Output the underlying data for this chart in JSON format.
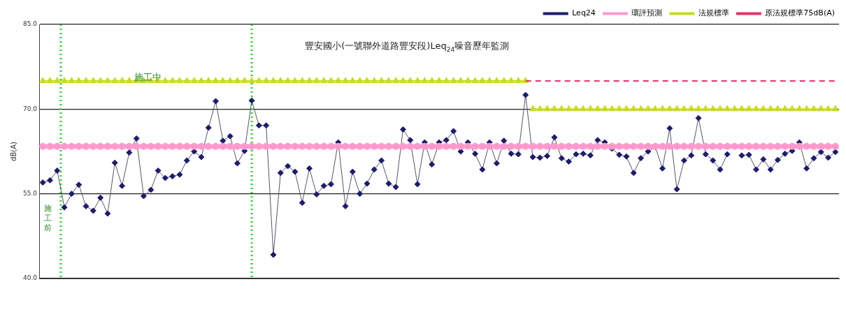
{
  "chart_data": {
    "type": "line",
    "title": "豐安國小(一號聯外道路豐安段)Leq$_{24}$噪音歷年監測",
    "ylabel": "dB(A)",
    "categories": [
      null,
      null,
      null,
      null,
      null,
      null,
      null,
      null,
      null,
      null,
      null,
      null,
      null,
      null,
      null,
      null,
      null,
      null,
      null,
      null,
      null,
      null,
      null,
      null,
      null,
      null,
      null,
      null,
      null,
      null,
      null,
      null,
      null,
      null,
      null,
      null,
      null,
      null,
      null,
      null,
      null,
      null,
      null,
      null,
      null,
      null,
      null,
      null,
      null,
      null,
      null,
      null,
      null,
      null,
      null,
      null,
      null,
      null,
      null,
      null,
      null,
      null,
      null,
      null,
      null,
      null,
      null,
      null,
      null,
      null,
      null,
      null,
      null,
      null,
      null,
      null,
      null,
      null,
      null,
      null,
      null,
      null,
      null,
      null,
      null,
      null,
      null,
      null,
      null,
      null,
      null,
      null,
      null,
      null,
      null,
      null,
      null,
      null,
      null,
      null,
      null,
      null,
      null,
      null,
      null,
      null,
      null,
      null,
      null,
      null,
      null
    ],
    "series": [
      {
        "name": "Leq24",
        "color": "#1c1c6e",
        "marker": "diamond",
        "line_style": "solid",
        "values": [
          57.0,
          57.4,
          59.1,
          52.6,
          55.0,
          56.6,
          52.8,
          52.0,
          54.3,
          51.5,
          60.5,
          56.4,
          62.3,
          64.8,
          54.6,
          55.7,
          59.1,
          57.8,
          58.1,
          58.4,
          60.9,
          62.5,
          61.5,
          66.7,
          71.4,
          64.4,
          65.2,
          60.4,
          62.6,
          71.5,
          67.1,
          67.1,
          44.2,
          58.7,
          59.9,
          58.9,
          53.4,
          59.5,
          54.9,
          56.4,
          56.7,
          64.1,
          52.8,
          58.9,
          55.0,
          56.8,
          59.3,
          60.9,
          56.8,
          56.2,
          66.4,
          64.5,
          56.7,
          64.1,
          60.2,
          64.1,
          64.5,
          66.1,
          62.5,
          64.1,
          62.1,
          59.3,
          64.1,
          60.4,
          64.4,
          62.1,
          62.0,
          72.5,
          61.5,
          61.4,
          61.7,
          65.0,
          61.3,
          60.7,
          62.0,
          62.1,
          61.8,
          64.5,
          64.1,
          63.0,
          61.9,
          61.6,
          58.7,
          61.3,
          62.5,
          63.3,
          59.5,
          66.6,
          55.8,
          60.9,
          61.8,
          68.4,
          62.0,
          60.9,
          59.3,
          62.0,
          null,
          61.8,
          61.9,
          59.3,
          61.1,
          59.3,
          61.0,
          62.1,
          62.6,
          64.1,
          59.5,
          61.3,
          62.4,
          61.4,
          62.4
        ]
      },
      {
        "name": "環評預測",
        "color": "#ff99cc",
        "marker": "circle",
        "line_style": "solid",
        "values": [
          63.4,
          63.4,
          63.4,
          63.4,
          63.4,
          63.4,
          63.4,
          63.4,
          63.4,
          63.4,
          63.4,
          63.4,
          63.4,
          63.4,
          63.4,
          63.4,
          63.4,
          63.4,
          63.4,
          63.4,
          63.4,
          63.4,
          63.4,
          63.4,
          63.4,
          63.4,
          63.4,
          63.4,
          63.4,
          63.4,
          63.4,
          63.4,
          63.4,
          63.4,
          63.4,
          63.4,
          63.4,
          63.4,
          63.4,
          63.4,
          63.4,
          63.4,
          63.4,
          63.4,
          63.4,
          63.4,
          63.4,
          63.4,
          63.4,
          63.4,
          63.4,
          63.4,
          63.4,
          63.4,
          63.4,
          63.4,
          63.4,
          63.4,
          63.4,
          63.4,
          63.4,
          63.4,
          63.4,
          63.4,
          63.4,
          63.4,
          63.4,
          63.4,
          63.4,
          63.4,
          63.4,
          63.4,
          63.4,
          63.4,
          63.4,
          63.4,
          63.4,
          63.4,
          63.4,
          63.4,
          63.4,
          63.4,
          63.4,
          63.4,
          63.4,
          63.4,
          63.4,
          63.4,
          63.4,
          63.4,
          63.4,
          63.4,
          63.4,
          63.4,
          63.4,
          63.4,
          63.4,
          63.4,
          63.4,
          63.4,
          63.4,
          63.4,
          63.4,
          63.4,
          63.4,
          63.4,
          63.4,
          63.4,
          63.4,
          63.4,
          63.4
        ]
      },
      {
        "name": "法規標準",
        "color": "#c8dc1e",
        "marker": "triangle",
        "line_style": "solid",
        "values": [
          75,
          75,
          75,
          75,
          75,
          75,
          75,
          75,
          75,
          75,
          75,
          75,
          75,
          75,
          75,
          75,
          75,
          75,
          75,
          75,
          75,
          75,
          75,
          75,
          75,
          75,
          75,
          75,
          75,
          75,
          75,
          75,
          75,
          75,
          75,
          75,
          75,
          75,
          75,
          75,
          75,
          75,
          75,
          75,
          75,
          75,
          75,
          75,
          75,
          75,
          75,
          75,
          75,
          75,
          75,
          75,
          75,
          75,
          75,
          75,
          75,
          75,
          75,
          75,
          75,
          75,
          75,
          75,
          70,
          70,
          70,
          70,
          70,
          70,
          70,
          70,
          70,
          70,
          70,
          70,
          70,
          70,
          70,
          70,
          70,
          70,
          70,
          70,
          70,
          70,
          70,
          70,
          70,
          70,
          70,
          70,
          70,
          70,
          70,
          70,
          70,
          70,
          70,
          70,
          70,
          70,
          70,
          70,
          70,
          70,
          70
        ]
      },
      {
        "name": "原法規標準75dB(A)",
        "color": "#e8336b",
        "marker": "none",
        "line_style": "dashed",
        "values": [
          null,
          null,
          null,
          null,
          null,
          null,
          null,
          null,
          null,
          null,
          null,
          null,
          null,
          null,
          null,
          null,
          null,
          null,
          null,
          null,
          null,
          null,
          null,
          null,
          null,
          null,
          null,
          null,
          null,
          null,
          null,
          null,
          null,
          null,
          null,
          null,
          null,
          null,
          null,
          null,
          null,
          null,
          null,
          null,
          null,
          null,
          null,
          null,
          null,
          null,
          null,
          null,
          null,
          null,
          null,
          null,
          null,
          null,
          null,
          null,
          null,
          null,
          null,
          null,
          null,
          null,
          null,
          75,
          75,
          75,
          75,
          75,
          75,
          75,
          75,
          75,
          75,
          75,
          75,
          75,
          75,
          75,
          75,
          75,
          75,
          75,
          75,
          75,
          75,
          75,
          75,
          75,
          75,
          75,
          75,
          75,
          75,
          75,
          75,
          75,
          75,
          75,
          75,
          75,
          75,
          75,
          75,
          75,
          75,
          75,
          75
        ]
      }
    ],
    "ylim": [
      40,
      85
    ],
    "yticks": [
      {
        "value": 40,
        "label": "40.0"
      },
      {
        "value": 55,
        "label": "55.0"
      },
      {
        "value": 70,
        "label": "70.0"
      },
      {
        "value": 85,
        "label": "85.0"
      }
    ],
    "grid": "y",
    "legend": "top right",
    "annotations": [
      "施工中",
      "施工前"
    ]
  }
}
